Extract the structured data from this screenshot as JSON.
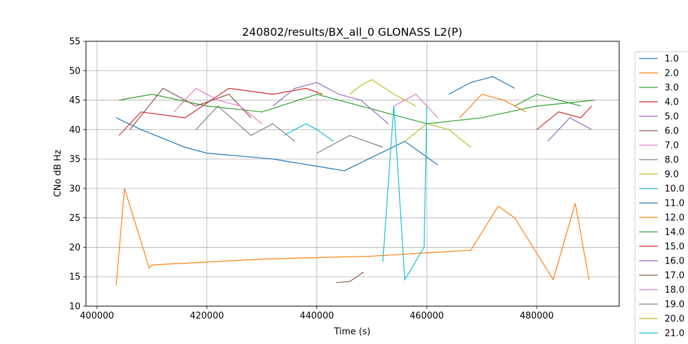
{
  "chart_data": {
    "type": "line",
    "title": "240802/results/BX_all_0 GLONASS L2(P)",
    "xlabel": "Time (s)",
    "ylabel": "CNo dB Hz",
    "xlim": [
      398000,
      495000
    ],
    "ylim": [
      10,
      55
    ],
    "xticks": [
      400000,
      420000,
      440000,
      460000,
      480000
    ],
    "xtick_labels": [
      "400000",
      "420000",
      "440000",
      "460000",
      "480000"
    ],
    "yticks": [
      10,
      15,
      20,
      25,
      30,
      35,
      40,
      45,
      50,
      55
    ],
    "ytick_labels": [
      "10",
      "15",
      "20",
      "25",
      "30",
      "35",
      "40",
      "45",
      "50",
      "55"
    ],
    "grid": true,
    "legend_position": "outside-right",
    "series": [
      {
        "name": "1.0",
        "color": "#1f77b4",
        "x": [
          403500,
          408000,
          416000,
          420000,
          432000,
          445000,
          456000,
          462000
        ],
        "y": [
          42,
          40,
          37,
          36,
          35,
          33,
          38,
          34
        ]
      },
      {
        "name": "2.0",
        "color": "#ff7f0e",
        "x": [
          403500,
          405000,
          409500,
          410000,
          430000,
          450000,
          468000,
          473000,
          476000,
          483000,
          487000,
          489500
        ],
        "y": [
          13.5,
          30,
          16.5,
          17,
          18,
          18.5,
          19.5,
          27,
          25,
          14.5,
          27.5,
          14.5
        ]
      },
      {
        "name": "3.0",
        "color": "#2ca02c",
        "x": [
          404000,
          410000,
          420000,
          430000,
          440000,
          460000,
          470000,
          480000,
          490500
        ],
        "y": [
          45,
          46,
          44,
          43,
          46,
          41,
          42,
          44,
          45
        ]
      },
      {
        "name": "4.0",
        "color": "#d62728",
        "x": [
          404000,
          408000,
          416000,
          424000,
          432000,
          438000,
          441000
        ],
        "y": [
          39,
          43,
          42,
          47,
          46,
          47,
          46
        ]
      },
      {
        "name": "5.0",
        "color": "#9467bd",
        "x": [
          432000,
          436000,
          440000,
          444000,
          448000,
          453000
        ],
        "y": [
          44,
          47,
          48,
          46,
          45,
          41
        ]
      },
      {
        "name": "6.0",
        "color": "#8c564b",
        "x": [
          406000,
          412000,
          418000,
          424000,
          428000
        ],
        "y": [
          40,
          47,
          44,
          46,
          42
        ]
      },
      {
        "name": "7.0",
        "color": "#e377c2",
        "x": [
          414000,
          418000,
          422000,
          426000,
          430000
        ],
        "y": [
          43,
          47,
          45,
          44,
          41
        ]
      },
      {
        "name": "8.0",
        "color": "#7f7f7f",
        "x": [
          418000,
          422000,
          428000,
          432000,
          436000
        ],
        "y": [
          40,
          44,
          39,
          41,
          38
        ]
      },
      {
        "name": "9.0",
        "color": "#bcbd22",
        "x": [
          446000,
          448000,
          450000,
          454000,
          458000
        ],
        "y": [
          46,
          47.5,
          48.5,
          46,
          44
        ]
      },
      {
        "name": "10.0",
        "color": "#17becf",
        "x": [
          434000,
          438000,
          440000,
          443000
        ],
        "y": [
          39,
          41,
          40,
          38
        ]
      },
      {
        "name": "11.0",
        "color": "#1f77b4",
        "x": [
          464000,
          468000,
          472000,
          476000
        ],
        "y": [
          46,
          48,
          49,
          47
        ]
      },
      {
        "name": "12.0",
        "color": "#ff7f0e",
        "x": [
          466000,
          470000,
          474000,
          478000
        ],
        "y": [
          42,
          46,
          45,
          43
        ]
      },
      {
        "name": "14.0",
        "color": "#2ca02c",
        "x": [
          476000,
          480000,
          484000,
          488000
        ],
        "y": [
          44,
          46,
          45,
          44
        ]
      },
      {
        "name": "15.0",
        "color": "#d62728",
        "x": [
          480000,
          484000,
          488000,
          490000
        ],
        "y": [
          40,
          43,
          42,
          44
        ]
      },
      {
        "name": "16.0",
        "color": "#9467bd",
        "x": [
          482000,
          486000,
          490000
        ],
        "y": [
          38,
          42,
          40
        ]
      },
      {
        "name": "17.0",
        "color": "#8c564b",
        "x": [
          443500,
          446000,
          448500
        ],
        "y": [
          14,
          14.2,
          15.8
        ]
      },
      {
        "name": "18.0",
        "color": "#e377c2",
        "x": [
          454000,
          458000,
          462000
        ],
        "y": [
          44,
          46,
          42
        ]
      },
      {
        "name": "19.0",
        "color": "#7f7f7f",
        "x": [
          440000,
          446000,
          452000
        ],
        "y": [
          36,
          39,
          37
        ]
      },
      {
        "name": "20.0",
        "color": "#bcbd22",
        "x": [
          456000,
          460000,
          464000,
          468000
        ],
        "y": [
          38,
          41,
          40,
          37
        ]
      },
      {
        "name": "21.0",
        "color": "#17becf",
        "x": [
          452000,
          454000,
          456000,
          459500,
          460000
        ],
        "y": [
          17.5,
          44,
          14.5,
          20,
          44
        ]
      }
    ]
  }
}
